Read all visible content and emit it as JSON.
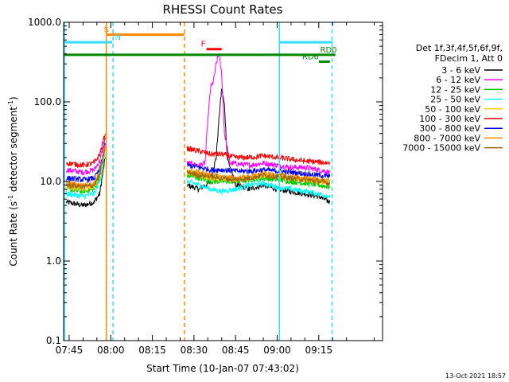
{
  "chart_data": {
    "type": "line",
    "title": "RHESSI Count Rates",
    "xlabel": "Start Time (10-Jan-07 07:43:02)",
    "ylabel_parts": [
      "Count Rate (s",
      "-1",
      " detector segment",
      "-1",
      ")"
    ],
    "yscale": "log",
    "ylim": [
      0.1,
      1000
    ],
    "xlim_min": [
      463,
      578
    ],
    "x_ticks": [
      {
        "min": 465,
        "label": "07:45"
      },
      {
        "min": 480,
        "label": "08:00"
      },
      {
        "min": 495,
        "label": "08:15"
      },
      {
        "min": 510,
        "label": "08:30"
      },
      {
        "min": 525,
        "label": "08:45"
      },
      {
        "min": 540,
        "label": "09:00"
      },
      {
        "min": 555,
        "label": "09:15"
      }
    ],
    "y_ticks": [
      {
        "v": 0.1,
        "label": "0.1"
      },
      {
        "v": 1,
        "label": "1.0"
      },
      {
        "v": 10,
        "label": "10.0"
      },
      {
        "v": 100,
        "label": "100.0"
      },
      {
        "v": 1000,
        "label": "1000.0"
      }
    ],
    "legend": {
      "header1": "Det 1f,3f,4f,5f,6f,9f,",
      "header2": "FDecim 1, Att 0"
    },
    "series": [
      {
        "name": "3 - 6 keV",
        "color": "#000000",
        "pre": [
          [
            464,
            5.5
          ],
          [
            470,
            5.0
          ],
          [
            474,
            5.5
          ],
          [
            476,
            7
          ],
          [
            478,
            20
          ]
        ],
        "post": [
          [
            507.5,
            9
          ],
          [
            512,
            8
          ],
          [
            516,
            10
          ],
          [
            518,
            20
          ],
          [
            519,
            60
          ],
          [
            520,
            150
          ],
          [
            521,
            90
          ],
          [
            522,
            20
          ],
          [
            525,
            9
          ],
          [
            530,
            8
          ],
          [
            535,
            9
          ],
          [
            540,
            8
          ],
          [
            545,
            7.5
          ],
          [
            550,
            7
          ],
          [
            555,
            6.5
          ],
          [
            559,
            5.5
          ]
        ]
      },
      {
        "name": "6 - 12 keV",
        "color": "#ff00ff",
        "pre": [
          [
            464,
            14
          ],
          [
            470,
            13
          ],
          [
            474,
            14
          ],
          [
            476,
            18
          ],
          [
            478,
            35
          ]
        ],
        "post": [
          [
            507.5,
            17
          ],
          [
            512,
            16
          ],
          [
            514,
            17
          ],
          [
            515,
            60
          ],
          [
            516,
            150
          ],
          [
            517,
            180
          ],
          [
            518,
            300
          ],
          [
            519,
            400
          ],
          [
            520,
            220
          ],
          [
            521,
            40
          ],
          [
            523,
            17
          ],
          [
            530,
            16
          ],
          [
            535,
            17
          ],
          [
            540,
            16
          ],
          [
            545,
            15
          ],
          [
            550,
            15
          ],
          [
            555,
            14
          ],
          [
            559,
            13
          ]
        ]
      },
      {
        "name": "12 - 25 keV",
        "color": "#00cc00",
        "pre": [
          [
            464,
            8
          ],
          [
            470,
            7.5
          ],
          [
            474,
            8
          ],
          [
            476,
            11
          ],
          [
            478,
            25
          ]
        ],
        "post": [
          [
            507.5,
            12
          ],
          [
            512,
            11
          ],
          [
            516,
            10
          ],
          [
            520,
            10
          ],
          [
            525,
            10
          ],
          [
            530,
            10.5
          ],
          [
            535,
            11
          ],
          [
            540,
            10.5
          ],
          [
            545,
            10
          ],
          [
            550,
            9.5
          ],
          [
            555,
            9
          ],
          [
            559,
            8.5
          ]
        ]
      },
      {
        "name": "25 - 50 keV",
        "color": "#00ffff",
        "pre": [
          [
            464,
            7
          ],
          [
            470,
            6.5
          ],
          [
            474,
            7
          ],
          [
            476,
            10
          ],
          [
            478,
            22
          ]
        ],
        "post": [
          [
            507.5,
            10
          ],
          [
            512,
            9
          ],
          [
            516,
            8
          ],
          [
            520,
            7.5
          ],
          [
            525,
            8
          ],
          [
            530,
            9
          ],
          [
            535,
            9.5
          ],
          [
            540,
            8.5
          ],
          [
            545,
            8
          ],
          [
            550,
            7.5
          ],
          [
            555,
            7
          ],
          [
            559,
            6.5
          ]
        ]
      },
      {
        "name": "50 - 100 keV",
        "color": "#ffcc00",
        "pre": [
          [
            464,
            8.5
          ],
          [
            470,
            8
          ],
          [
            474,
            8.5
          ],
          [
            476,
            12
          ],
          [
            478,
            26
          ]
        ],
        "post": [
          [
            507.5,
            13
          ],
          [
            512,
            12
          ],
          [
            516,
            11
          ],
          [
            520,
            10.5
          ],
          [
            525,
            10.5
          ],
          [
            530,
            11
          ],
          [
            535,
            12
          ],
          [
            540,
            11.5
          ],
          [
            545,
            11
          ],
          [
            550,
            10.5
          ],
          [
            555,
            10
          ],
          [
            559,
            9.5
          ]
        ]
      },
      {
        "name": "100 - 300 keV",
        "color": "#ff0000",
        "pre": [
          [
            464,
            17
          ],
          [
            470,
            16
          ],
          [
            474,
            17
          ],
          [
            476,
            22
          ],
          [
            478,
            40
          ]
        ],
        "post": [
          [
            507.5,
            26
          ],
          [
            512,
            24
          ],
          [
            516,
            22
          ],
          [
            520,
            22
          ],
          [
            525,
            20
          ],
          [
            530,
            20
          ],
          [
            535,
            21
          ],
          [
            540,
            20
          ],
          [
            545,
            19
          ],
          [
            550,
            18
          ],
          [
            555,
            17.5
          ],
          [
            559,
            17
          ]
        ]
      },
      {
        "name": "300 - 800 keV",
        "color": "#0000ff",
        "pre": [
          [
            464,
            11
          ],
          [
            470,
            10.5
          ],
          [
            474,
            11
          ],
          [
            476,
            14
          ],
          [
            478,
            30
          ]
        ],
        "post": [
          [
            507.5,
            16
          ],
          [
            512,
            15
          ],
          [
            516,
            14
          ],
          [
            520,
            14
          ],
          [
            525,
            13.5
          ],
          [
            530,
            13.5
          ],
          [
            535,
            14
          ],
          [
            540,
            13.5
          ],
          [
            545,
            13
          ],
          [
            550,
            12.5
          ],
          [
            555,
            12
          ],
          [
            559,
            11.5
          ]
        ]
      },
      {
        "name": "800 - 7000 keV",
        "color": "#ff8800",
        "pre": [
          [
            464,
            9.5
          ],
          [
            470,
            9
          ],
          [
            474,
            9.5
          ],
          [
            476,
            13
          ],
          [
            478,
            28
          ]
        ],
        "post": [
          [
            507.5,
            14
          ],
          [
            512,
            13
          ],
          [
            516,
            12
          ],
          [
            520,
            11.5
          ],
          [
            525,
            11
          ],
          [
            530,
            11.5
          ],
          [
            535,
            12.5
          ],
          [
            540,
            12
          ],
          [
            545,
            11.5
          ],
          [
            550,
            11
          ],
          [
            555,
            10.5
          ],
          [
            559,
            10
          ]
        ]
      },
      {
        "name": "7000 - 15000 keV",
        "color": "#996600",
        "pre": [
          [
            464,
            9
          ],
          [
            470,
            8.5
          ],
          [
            474,
            9
          ],
          [
            476,
            12
          ],
          [
            478,
            27
          ]
        ],
        "post": [
          [
            507.5,
            13
          ],
          [
            512,
            12
          ],
          [
            516,
            11.5
          ],
          [
            520,
            11
          ],
          [
            525,
            10.5
          ],
          [
            530,
            11
          ],
          [
            535,
            12
          ],
          [
            540,
            11.5
          ],
          [
            545,
            11
          ],
          [
            550,
            10.5
          ],
          [
            555,
            10
          ],
          [
            559,
            9.5
          ]
        ]
      }
    ],
    "bars": [
      {
        "label": "S",
        "color": "#ff8800",
        "x0": 478.5,
        "x1": 506.5,
        "y": 700,
        "label_x": 477.5
      },
      {
        "label": "N",
        "color": "#33ddff",
        "x0": 463,
        "x1": 480.5,
        "y": 560,
        "label_x": 481.5
      },
      {
        "label": "F",
        "color": "#ff0000",
        "x0": 514.5,
        "x1": 520,
        "y": 460,
        "label_x": 512.5
      },
      {
        "label": "",
        "color": "#33ddff",
        "x0": 541,
        "x1": 560,
        "y": 560,
        "label_x": 541
      },
      {
        "label": "RD0",
        "color": "#008800",
        "x0": 463,
        "x1": 561,
        "y": 390,
        "label_x": 555.5
      },
      {
        "label": "RD6",
        "color": "#008800",
        "x0": 555,
        "x1": 559,
        "y": 320,
        "label_x": 549
      }
    ],
    "vlines": [
      {
        "x": 463.3,
        "color": "#33ddff",
        "style": "solid"
      },
      {
        "x": 478.4,
        "color": "#ff8800",
        "style": "solid"
      },
      {
        "x": 480.8,
        "color": "#33ddff",
        "style": "dashed"
      },
      {
        "x": 506.6,
        "color": "#ff8800",
        "style": "dashed"
      },
      {
        "x": 540.8,
        "color": "#33ddff",
        "style": "solid"
      },
      {
        "x": 559.8,
        "color": "#33ddff",
        "style": "dashed"
      }
    ],
    "footer": "13-Oct-2021 18:57",
    "grid": false
  }
}
